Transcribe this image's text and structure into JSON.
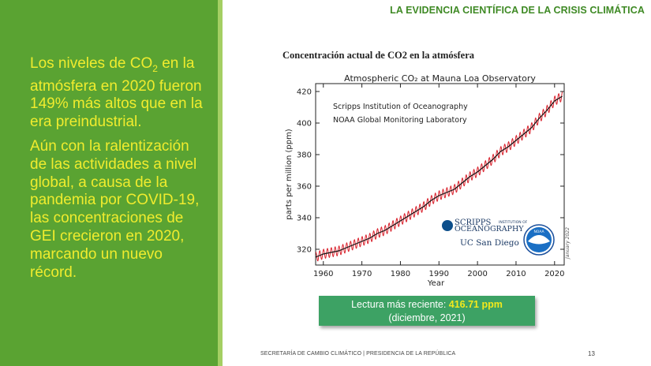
{
  "slide": {
    "header": "LA EVIDENCIA CIENTÍFICA DE LA CRISIS CLIMÁTICA",
    "paragraph1_part1": "Los niveles de CO",
    "paragraph1_sub": "2",
    "paragraph1_part2": " en la atmósfera en 2020 fueron 149% más altos que en la era preindustrial.",
    "paragraph2": "Aún con la ralentización de las actividades a nivel global, a causa de la pandemia por COVID-19, las concentraciones de GEI crecieron en 2020, marcando un nuevo récord.",
    "chart_caption": "Concentración actual de CO2 en la atmósfera",
    "reading_label": "Lectura más reciente: ",
    "reading_value": "416.71 ppm",
    "reading_date": "(diciembre, 2021)",
    "footer": "SECRETARÍA DE CAMBIO CLIMÁTICO | PRESIDENCIA DE LA REPÚBLICA",
    "page_number": "13"
  },
  "chart_data": {
    "type": "line",
    "title": "Atmospheric CO₂ at Mauna Loa Observatory",
    "ylabel": "parts per million (ppm)",
    "xlabel": "Year",
    "xlim": [
      1958,
      2022.5
    ],
    "ylim": [
      310,
      425
    ],
    "x_ticks": [
      1960,
      1970,
      1980,
      1990,
      2000,
      2010,
      2020
    ],
    "y_ticks": [
      320,
      340,
      360,
      380,
      400,
      420
    ],
    "annotations": [
      "Scripps Institution of Oceanography",
      "NOAA Global Monitoring Laboratory"
    ],
    "date_label": "January 2022",
    "logo_scripps": [
      "SCRIPPS",
      "INSTITUTION OF",
      "OCEANOGRAPHY"
    ],
    "logo_ucsd": "UC San Diego",
    "logo_noaa": "NOAA",
    "seasonal_amplitude_ppm": 3,
    "colors": {
      "monthly": "#d9232e",
      "trend": "#111111"
    },
    "series": [
      {
        "x": [
          1958,
          1960,
          1962,
          1964,
          1966,
          1968,
          1970,
          1972,
          1974,
          1976,
          1978,
          1980,
          1982,
          1984,
          1986,
          1988,
          1990,
          1992,
          1994,
          1996,
          1998,
          2000,
          2002,
          2004,
          2006,
          2008,
          2010,
          2012,
          2014,
          2016,
          2018,
          2020,
          2022
        ],
        "y": [
          315,
          317,
          318,
          319,
          321,
          323,
          325,
          327,
          330,
          332,
          335,
          338,
          341,
          344,
          347,
          351,
          354,
          356,
          358,
          362,
          366,
          369,
          373,
          377,
          382,
          385,
          389,
          393,
          397,
          403,
          408,
          414,
          417
        ]
      }
    ]
  }
}
